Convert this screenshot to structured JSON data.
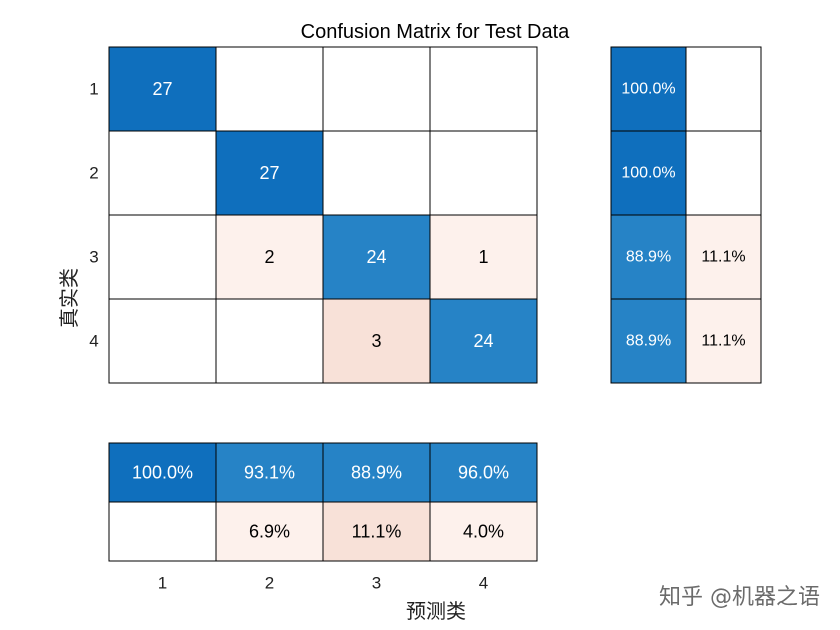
{
  "chart_data": {
    "type": "heatmap",
    "title": "Confusion Matrix for Test Data",
    "xlabel": "预测类",
    "ylabel": "真实类",
    "row_labels": [
      "1",
      "2",
      "3",
      "4"
    ],
    "col_labels": [
      "1",
      "2",
      "3",
      "4"
    ],
    "matrix": [
      [
        27,
        0,
        0,
        0
      ],
      [
        0,
        27,
        0,
        0
      ],
      [
        0,
        2,
        24,
        1
      ],
      [
        0,
        0,
        3,
        24
      ]
    ],
    "row_summary": [
      [
        "100.0%",
        ""
      ],
      [
        "100.0%",
        ""
      ],
      [
        "88.9%",
        "11.1%"
      ],
      [
        "88.9%",
        "11.1%"
      ]
    ],
    "column_summary": [
      [
        "100.0%",
        "93.1%",
        "88.9%",
        "96.0%"
      ],
      [
        "",
        "6.9%",
        "11.1%",
        "4.0%"
      ]
    ],
    "colors": {
      "diag_strong": "#0f6fbd",
      "diag_mid": "#2683c6",
      "diag_light": "#3c8dcc",
      "off_light": "#fdf1ec",
      "off_mid": "#f8e1d8",
      "grid": "#000000"
    }
  },
  "watermark": "知乎 @机器之语"
}
